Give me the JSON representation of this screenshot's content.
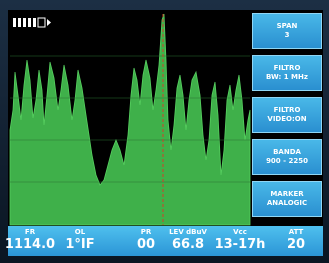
{
  "buttons": [
    {
      "lines": [
        "SPAN",
        "3"
      ]
    },
    {
      "lines": [
        "FILTRO",
        "BW: 1 MHz"
      ]
    },
    {
      "lines": [
        "FILTRO",
        "VIDEO:ON"
      ]
    },
    {
      "lines": [
        "BANDA",
        "900 - 2250"
      ]
    },
    {
      "lines": [
        "MARKER",
        "ANALOGIC"
      ]
    }
  ],
  "status": [
    {
      "label": "FR",
      "value": "1114.0"
    },
    {
      "label": "OL",
      "value": "1°IF"
    },
    {
      "label": "PR",
      "value": "00"
    },
    {
      "label": "LEV dBuV",
      "value": "66.8"
    },
    {
      "label": "Vcc",
      "value": "13-17h"
    },
    {
      "label": "ATT",
      "value": "20"
    }
  ]
}
